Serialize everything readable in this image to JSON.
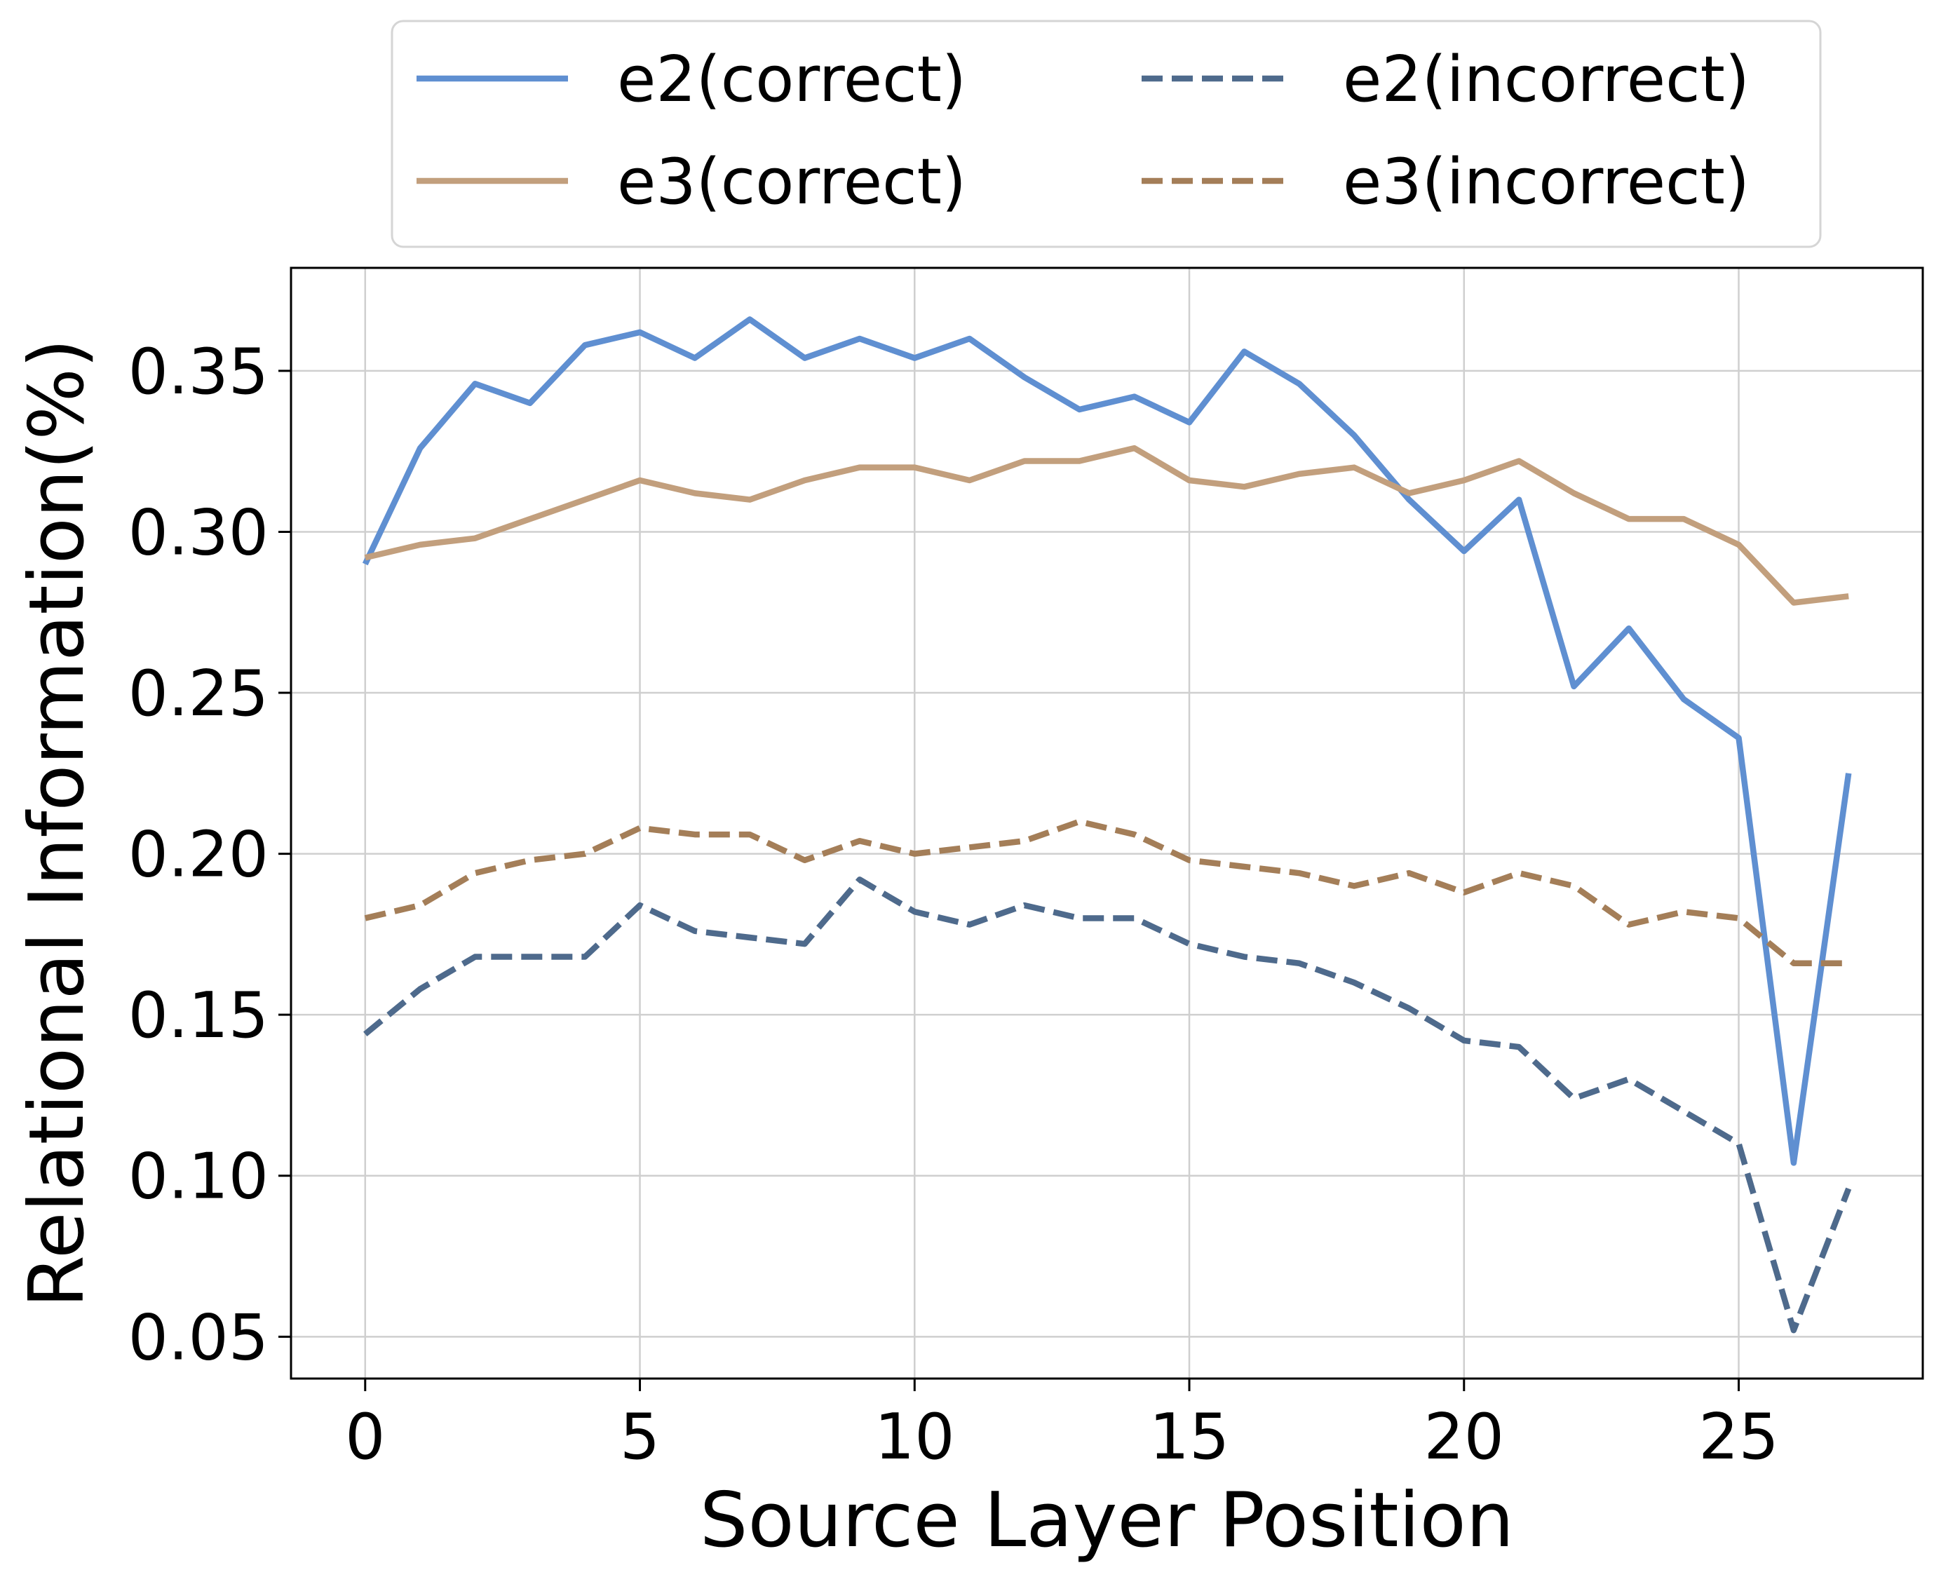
{
  "chart_data": {
    "type": "line",
    "title": "",
    "xlabel": "Source Layer Position",
    "ylabel": "Relational Information(%)",
    "x": [
      0,
      1,
      2,
      3,
      4,
      5,
      6,
      7,
      8,
      9,
      10,
      11,
      12,
      13,
      14,
      15,
      16,
      17,
      18,
      19,
      20,
      21,
      22,
      23,
      24,
      25,
      26,
      27
    ],
    "xlim": [
      -1.35,
      28.35
    ],
    "ylim": [
      0.037,
      0.382
    ],
    "xticks": [
      0,
      5,
      10,
      15,
      20,
      25
    ],
    "xtick_labels": [
      "0",
      "5",
      "10",
      "15",
      "20",
      "25"
    ],
    "yticks": [
      0.05,
      0.1,
      0.15,
      0.2,
      0.25,
      0.3,
      0.35
    ],
    "ytick_labels": [
      "0.05",
      "0.10",
      "0.15",
      "0.20",
      "0.25",
      "0.30",
      "0.35"
    ],
    "grid": true,
    "legend_position": "top-center, outside plot area, 2 columns",
    "series": [
      {
        "name": "e2(correct)",
        "color": "#5f8fd1",
        "dashed": false,
        "values": [
          0.29,
          0.326,
          0.346,
          0.34,
          0.358,
          0.362,
          0.354,
          0.366,
          0.354,
          0.36,
          0.354,
          0.36,
          0.348,
          0.338,
          0.342,
          0.334,
          0.356,
          0.346,
          0.33,
          0.31,
          0.294,
          0.31,
          0.252,
          0.27,
          0.248,
          0.236,
          0.104,
          0.225
        ]
      },
      {
        "name": "e3(correct)",
        "color": "#c29f7d",
        "dashed": false,
        "values": [
          0.292,
          0.296,
          0.298,
          0.304,
          0.31,
          0.316,
          0.312,
          0.31,
          0.316,
          0.32,
          0.32,
          0.316,
          0.322,
          0.322,
          0.326,
          0.316,
          0.314,
          0.318,
          0.32,
          0.312,
          0.316,
          0.322,
          0.312,
          0.304,
          0.304,
          0.296,
          0.278,
          0.28
        ]
      },
      {
        "name": "e2(incorrect)",
        "color": "#4e6a8c",
        "dashed": true,
        "values": [
          0.144,
          0.158,
          0.168,
          0.168,
          0.168,
          0.184,
          0.176,
          0.174,
          0.172,
          0.192,
          0.182,
          0.178,
          0.184,
          0.18,
          0.18,
          0.172,
          0.168,
          0.166,
          0.16,
          0.152,
          0.142,
          0.14,
          0.124,
          0.13,
          0.12,
          0.11,
          0.052,
          0.096
        ]
      },
      {
        "name": "e3(incorrect)",
        "color": "#a47e58",
        "dashed": true,
        "values": [
          0.18,
          0.184,
          0.194,
          0.198,
          0.2,
          0.208,
          0.206,
          0.206,
          0.198,
          0.204,
          0.2,
          0.202,
          0.204,
          0.21,
          0.206,
          0.198,
          0.196,
          0.194,
          0.19,
          0.194,
          0.188,
          0.194,
          0.19,
          0.178,
          0.182,
          0.18,
          0.166,
          0.166
        ]
      }
    ]
  }
}
